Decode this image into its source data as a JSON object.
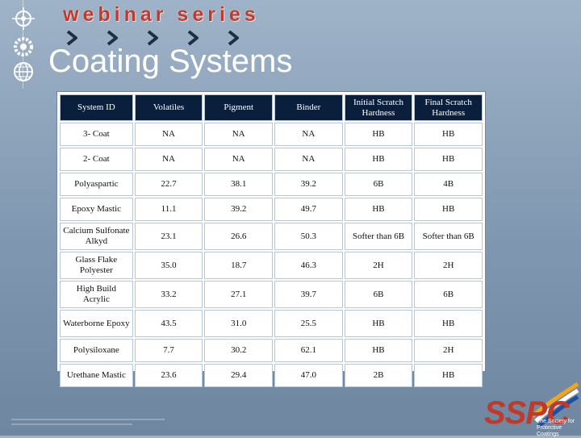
{
  "header": {
    "banner": "webinar series",
    "title": "Coating Systems"
  },
  "table": {
    "columns": [
      "System ID",
      "Volatiles",
      "Pigment",
      "Binder",
      "Initial Scratch Hardness",
      "Final Scratch Hardness"
    ],
    "rows": [
      [
        "3- Coat",
        "NA",
        "NA",
        "NA",
        "HB",
        "HB"
      ],
      [
        "2- Coat",
        "NA",
        "NA",
        "NA",
        "HB",
        "HB"
      ],
      [
        "Polyaspartic",
        "22.7",
        "38.1",
        "39.2",
        "6B",
        "4B"
      ],
      [
        "Epoxy Mastic",
        "11.1",
        "39.2",
        "49.7",
        "HB",
        "HB"
      ],
      [
        "Calcium Sulfonate Alkyd",
        "23.1",
        "26.6",
        "50.3",
        "Softer than 6B",
        "Softer than 6B"
      ],
      [
        "Glass Flake Polyester",
        "35.0",
        "18.7",
        "46.3",
        "2H",
        "2H"
      ],
      [
        "High Build Acrylic",
        "33.2",
        "27.1",
        "39.7",
        "6B",
        "6B"
      ],
      [
        "Waterborne Epoxy",
        "43.5",
        "31.0",
        "25.5",
        "HB",
        "HB"
      ],
      [
        "Polysiloxane",
        "7.7",
        "30.2",
        "62.1",
        "HB",
        "2H"
      ],
      [
        "Urethane Mastic",
        "23.6",
        "29.4",
        "47.0",
        "2B",
        "HB"
      ]
    ]
  },
  "logo": {
    "name": "SSPC",
    "tagline": "The Society for Protective Coatings"
  },
  "colors": {
    "banner": "#c0392b",
    "header_row": "#0a1f3c",
    "logo_red": "#c0392b"
  },
  "icons": [
    "crosshair-icon",
    "gear-icon",
    "globe-icon",
    "chevron-right-icon"
  ]
}
